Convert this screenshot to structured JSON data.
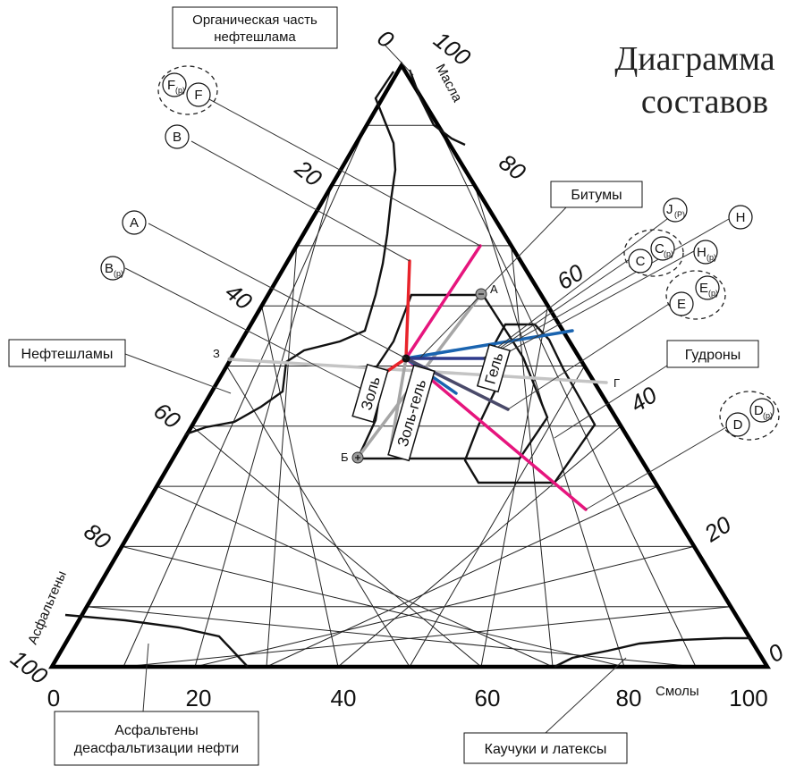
{
  "title": {
    "line1": "Диаграмма",
    "line2": "составов"
  },
  "axes": {
    "oils_label": "Масла",
    "resins_label": "Смолы",
    "asphaltenes_label": "Асфальтены",
    "bottom_ticks": [
      "0",
      "20",
      "40",
      "60",
      "80",
      "100"
    ],
    "right_ticks": [
      "100",
      "80",
      "60",
      "40",
      "20",
      "0"
    ],
    "left_ticks": [
      "0",
      "20",
      "40",
      "60",
      "80",
      "100"
    ]
  },
  "callouts": {
    "organic": {
      "line1": "Органическая часть",
      "line2": "нефтешлама"
    },
    "bitumens": "Битумы",
    "sludges": "Нефтешламы",
    "tars": "Гудроны",
    "asph_deasph": {
      "line1": "Асфальтены",
      "line2": "деасфальтизации нефти"
    },
    "rubbers": "Каучуки и латексы"
  },
  "zones": {
    "sol": "Золь",
    "sol_gel": "Золь-гель",
    "gel": "Гель"
  },
  "points": {
    "A": "А",
    "B": "Б",
    "Z": "З",
    "G": "Г"
  },
  "markers": [
    {
      "main": "F",
      "sub": "(р)"
    },
    {
      "main": "F",
      "sub": ""
    },
    {
      "main": "B",
      "sub": ""
    },
    {
      "main": "A",
      "sub": ""
    },
    {
      "main": "B",
      "sub": "(р)"
    },
    {
      "main": "J",
      "sub": "(Р)"
    },
    {
      "main": "H",
      "sub": ""
    },
    {
      "main": "C",
      "sub": ""
    },
    {
      "main": "C",
      "sub": "(р)"
    },
    {
      "main": "H",
      "sub": "(р)"
    },
    {
      "main": "E",
      "sub": ""
    },
    {
      "main": "E",
      "sub": "(р)"
    },
    {
      "main": "D",
      "sub": ""
    },
    {
      "main": "D",
      "sub": "(р)"
    }
  ],
  "colors": {
    "red": "#e8232a",
    "magenta": "#e6157d",
    "gray": "#a6a6a6",
    "light_gray": "#c4c4c4",
    "blue": "#1a64b0",
    "navy": "#2e3a8c",
    "dark_slate": "#4a4a6a"
  }
}
